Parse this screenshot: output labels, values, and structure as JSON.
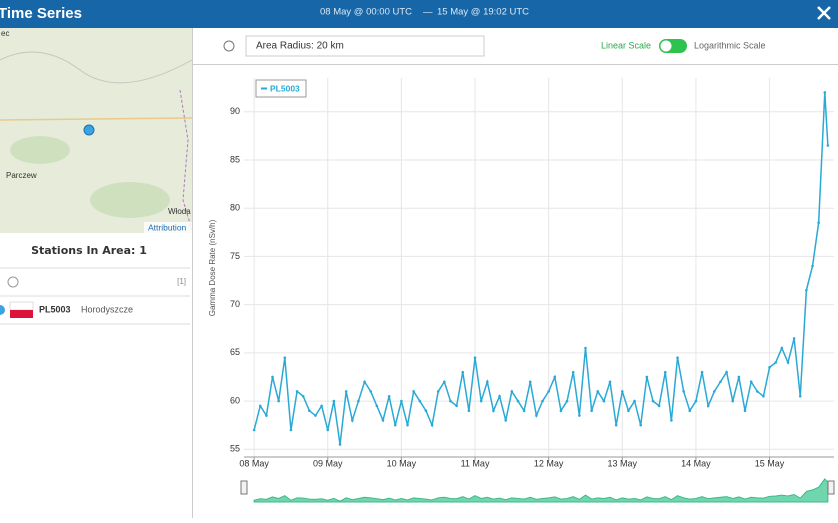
{
  "header": {
    "title": "Time Series",
    "start": "08 May @ 00:00 UTC",
    "separator": "—",
    "end": "15 May @ 19:02 UTC"
  },
  "map": {
    "labels": [
      "ec",
      "Parczew",
      "Włoda",
      "Attribution"
    ]
  },
  "controls": {
    "radius": "Area Radius: 20 km",
    "linear": "Linear Scale",
    "log": "Logarithmic Scale"
  },
  "stations": {
    "title": "Stations In Area: 1",
    "count": "[1]",
    "rows": [
      {
        "id": "PL5003",
        "name": "Horodyszcze"
      }
    ]
  },
  "chart_data": {
    "type": "line",
    "y_label": "Gamma Dose Rate (nSv/h)",
    "x": [
      0,
      2,
      4,
      6,
      8,
      10,
      12,
      14,
      16,
      18,
      20,
      22,
      24,
      26,
      28,
      30,
      32,
      34,
      36,
      38,
      40,
      42,
      44,
      46,
      48,
      50,
      52,
      54,
      56,
      58,
      60,
      62,
      64,
      66,
      68,
      70,
      72,
      74,
      76,
      78,
      80,
      82,
      84,
      86,
      88,
      90,
      92,
      94,
      96,
      98,
      100,
      102,
      104,
      106,
      108,
      110,
      112,
      114,
      116,
      118,
      120,
      122,
      124,
      126,
      128,
      130,
      132,
      134,
      136,
      138,
      140,
      142,
      144,
      146,
      148,
      150,
      152,
      154,
      156,
      158,
      160,
      162,
      164,
      166,
      168,
      170,
      172,
      174,
      176,
      178,
      180,
      182,
      184,
      186,
      187
    ],
    "series": [
      {
        "name": "PL5003",
        "color": "#29a9d6",
        "values": [
          57,
          59.5,
          58.5,
          62.5,
          60,
          64.5,
          57,
          61,
          60.5,
          59,
          58.5,
          59.5,
          57,
          60,
          55.5,
          61,
          58,
          60,
          62,
          61,
          59.5,
          58,
          60.5,
          57.5,
          60,
          57.5,
          61,
          60,
          59,
          57.5,
          61,
          62,
          60,
          59.5,
          63,
          59,
          64.5,
          60,
          62,
          59,
          60.5,
          58,
          61,
          60,
          59,
          62,
          58.5,
          60,
          61,
          62.5,
          59,
          60,
          63,
          58.5,
          65.5,
          59,
          61,
          60,
          62,
          57.5,
          61,
          59,
          60,
          57.5,
          62.5,
          60,
          59.5,
          63,
          58,
          64.5,
          61,
          59,
          60,
          63,
          59.5,
          61,
          62,
          63,
          60,
          62.5,
          59,
          62,
          61,
          60.5,
          63.5,
          64,
          65.5,
          64,
          66.5,
          60.5,
          71.5,
          74,
          78.5,
          92,
          86.5
        ]
      }
    ],
    "xlim": [
      -3.3,
      189
    ],
    "xticks": [
      {
        "value": 0,
        "label": "08 May"
      },
      {
        "value": 24,
        "label": "09 May"
      },
      {
        "value": 48,
        "label": "10 May"
      },
      {
        "value": 72,
        "label": "11 May"
      },
      {
        "value": 96,
        "label": "12 May"
      },
      {
        "value": 120,
        "label": "13 May"
      },
      {
        "value": 144,
        "label": "14 May"
      },
      {
        "value": 168,
        "label": "15 May"
      }
    ],
    "ylim": [
      54.2,
      93.5
    ],
    "yticks": [
      55,
      60,
      65,
      70,
      75,
      80,
      85,
      90
    ],
    "grid": true
  }
}
